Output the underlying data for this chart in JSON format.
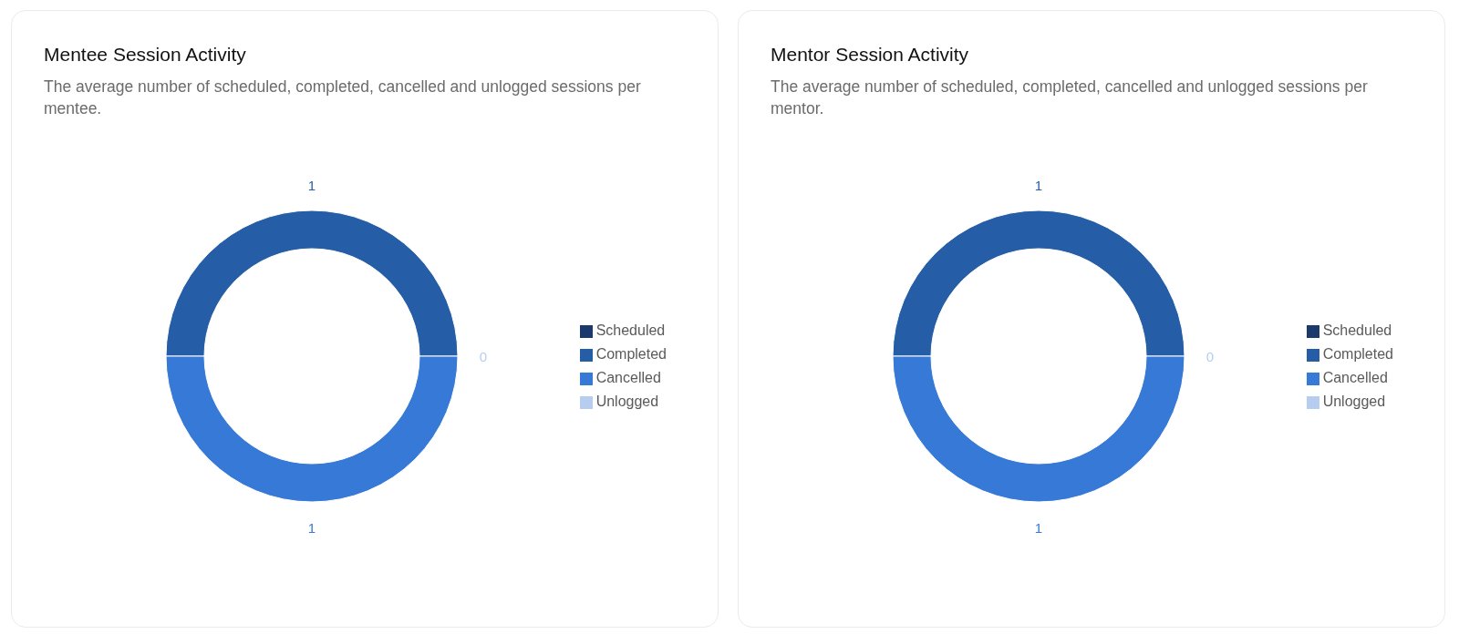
{
  "chart_data": [
    {
      "type": "donut",
      "title": "Mentee Session Activity",
      "subtitle": "The average number of scheduled, completed, cancelled and unlogged sessions per mentee.",
      "categories": [
        "Scheduled",
        "Completed",
        "Cancelled",
        "Unlogged"
      ],
      "values": [
        0,
        1,
        1,
        0
      ],
      "colors": [
        "#1b3a6b",
        "#255ea6",
        "#3679d6",
        "#b7cdf0"
      ],
      "value_labels": [
        null,
        "1",
        "1",
        "0"
      ],
      "legend": "right"
    },
    {
      "type": "donut",
      "title": "Mentor Session Activity",
      "subtitle": "The average number of scheduled, completed, cancelled and unlogged sessions per mentor.",
      "categories": [
        "Scheduled",
        "Completed",
        "Cancelled",
        "Unlogged"
      ],
      "values": [
        0,
        1,
        1,
        0
      ],
      "colors": [
        "#1b3a6b",
        "#255ea6",
        "#3679d6",
        "#b7cdf0"
      ],
      "value_labels": [
        null,
        "1",
        "1",
        "0"
      ],
      "legend": "right"
    }
  ]
}
